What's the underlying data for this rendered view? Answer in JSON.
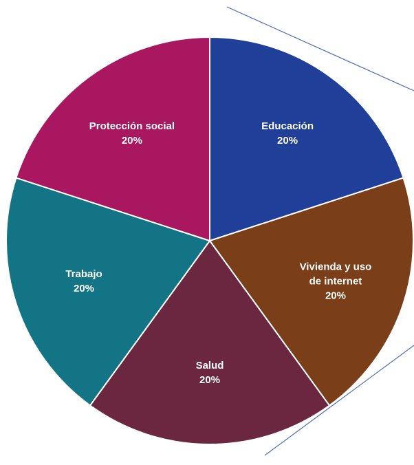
{
  "chart_data": {
    "type": "pie",
    "categories": [
      "Educación",
      "Vivienda y uso de internet",
      "Salud",
      "Trabajo",
      "Protección social"
    ],
    "values": [
      20,
      20,
      20,
      20,
      20
    ],
    "value_labels": [
      "20%",
      "20%",
      "20%",
      "20%",
      "20%"
    ],
    "colors": [
      "#1f3f98",
      "#7a3e18",
      "#6b2740",
      "#137486",
      "#a8175f"
    ]
  }
}
